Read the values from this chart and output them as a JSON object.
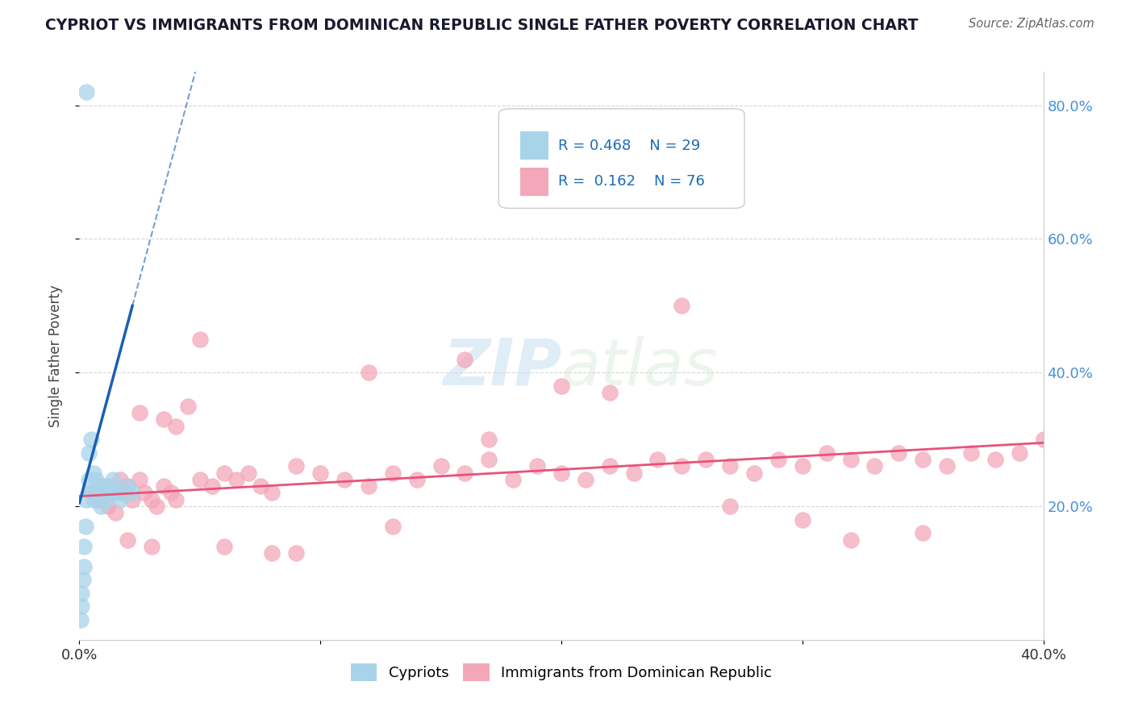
{
  "title": "CYPRIOT VS IMMIGRANTS FROM DOMINICAN REPUBLIC SINGLE FATHER POVERTY CORRELATION CHART",
  "source": "Source: ZipAtlas.com",
  "ylabel": "Single Father Poverty",
  "xlim": [
    0.0,
    0.4
  ],
  "ylim": [
    0.0,
    0.85
  ],
  "yticks": [
    0.2,
    0.4,
    0.6,
    0.8
  ],
  "ytick_labels": [
    "20.0%",
    "40.0%",
    "60.0%",
    "80.0%"
  ],
  "cypriot_color": "#a8d4ea",
  "dominican_color": "#f4a7b9",
  "cypriot_line_color": "#1a5fb4",
  "dominican_line_color": "#e8527a",
  "legend_R1": "0.468",
  "legend_N1": "29",
  "legend_R2": "0.162",
  "legend_N2": "76",
  "watermark_text": "ZIPatlas",
  "background_color": "#ffffff",
  "grid_color": "#cccccc",
  "cypriot_x": [
    0.0005,
    0.001,
    0.001,
    0.0015,
    0.002,
    0.002,
    0.0025,
    0.003,
    0.003,
    0.004,
    0.004,
    0.005,
    0.005,
    0.006,
    0.006,
    0.007,
    0.008,
    0.009,
    0.009,
    0.01,
    0.011,
    0.012,
    0.013,
    0.014,
    0.015,
    0.017,
    0.018,
    0.02,
    0.022
  ],
  "cypriot_y": [
    0.03,
    0.05,
    0.07,
    0.09,
    0.11,
    0.14,
    0.17,
    0.21,
    0.82,
    0.24,
    0.28,
    0.3,
    0.22,
    0.25,
    0.21,
    0.24,
    0.22,
    0.2,
    0.23,
    0.22,
    0.21,
    0.23,
    0.22,
    0.24,
    0.22,
    0.21,
    0.22,
    0.23,
    0.22
  ],
  "dominican_x": [
    0.005,
    0.008,
    0.01,
    0.012,
    0.015,
    0.017,
    0.018,
    0.02,
    0.022,
    0.025,
    0.027,
    0.03,
    0.032,
    0.035,
    0.038,
    0.04,
    0.045,
    0.05,
    0.055,
    0.06,
    0.065,
    0.07,
    0.075,
    0.08,
    0.09,
    0.1,
    0.11,
    0.12,
    0.13,
    0.14,
    0.15,
    0.16,
    0.17,
    0.18,
    0.19,
    0.2,
    0.21,
    0.22,
    0.23,
    0.24,
    0.25,
    0.26,
    0.27,
    0.28,
    0.29,
    0.3,
    0.31,
    0.32,
    0.33,
    0.34,
    0.35,
    0.36,
    0.37,
    0.38,
    0.39,
    0.4,
    0.025,
    0.035,
    0.05,
    0.08,
    0.12,
    0.16,
    0.2,
    0.25,
    0.3,
    0.35,
    0.02,
    0.03,
    0.04,
    0.06,
    0.09,
    0.13,
    0.17,
    0.22,
    0.27,
    0.32
  ],
  "dominican_y": [
    0.22,
    0.21,
    0.23,
    0.2,
    0.19,
    0.24,
    0.22,
    0.23,
    0.21,
    0.24,
    0.22,
    0.21,
    0.2,
    0.23,
    0.22,
    0.21,
    0.35,
    0.24,
    0.23,
    0.25,
    0.24,
    0.25,
    0.23,
    0.22,
    0.26,
    0.25,
    0.24,
    0.23,
    0.25,
    0.24,
    0.26,
    0.25,
    0.27,
    0.24,
    0.26,
    0.25,
    0.24,
    0.26,
    0.25,
    0.27,
    0.26,
    0.27,
    0.26,
    0.25,
    0.27,
    0.26,
    0.28,
    0.27,
    0.26,
    0.28,
    0.27,
    0.26,
    0.28,
    0.27,
    0.28,
    0.3,
    0.34,
    0.33,
    0.45,
    0.13,
    0.4,
    0.42,
    0.38,
    0.5,
    0.18,
    0.16,
    0.15,
    0.14,
    0.32,
    0.14,
    0.13,
    0.17,
    0.3,
    0.37,
    0.2,
    0.15
  ]
}
